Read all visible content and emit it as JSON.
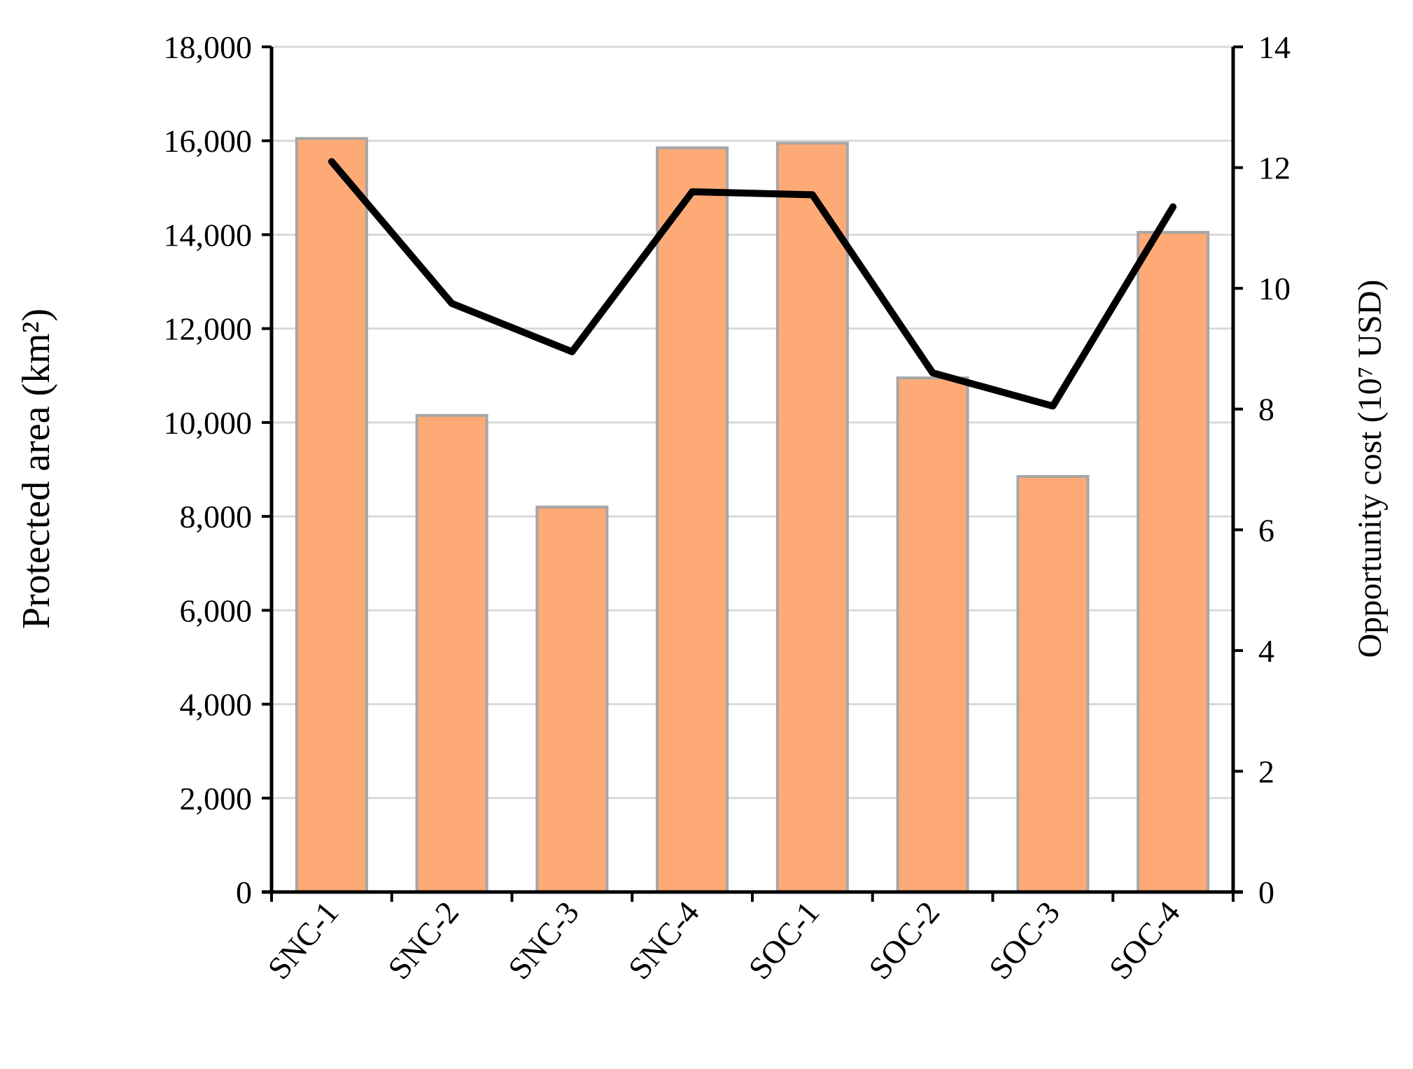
{
  "chart_data": {
    "type": "bar",
    "categories": [
      "SNC-1",
      "SNC-2",
      "SNC-3",
      "SNC-4",
      "SOC-1",
      "SOC-2",
      "SOC-3",
      "SOC-4"
    ],
    "series": [
      {
        "type": "bar",
        "axis": "left",
        "values": [
          16050,
          10150,
          8200,
          15850,
          15950,
          10950,
          8850,
          14050
        ]
      },
      {
        "type": "line",
        "axis": "right",
        "values": [
          12.1,
          9.75,
          8.95,
          11.6,
          11.55,
          8.6,
          8.05,
          11.35
        ]
      }
    ],
    "ylabel": "Protected area (km²)",
    "y2label": "Opportunity cost (10⁷ USD)",
    "ylim": [
      0,
      18000
    ],
    "y2lim": [
      0,
      14
    ],
    "yticks": [
      "0",
      "2,000",
      "4,000",
      "6,000",
      "8,000",
      "10,000",
      "12,000",
      "14,000",
      "16,000",
      "18,000"
    ],
    "y2ticks": [
      "0",
      "2",
      "4",
      "6",
      "8",
      "10",
      "12",
      "14"
    ],
    "grid": true,
    "colors": {
      "bar_fill": "#FDAA77",
      "bar_edge": "#A6A6A6",
      "line": "#000000",
      "grid": "#D9D9D9"
    }
  }
}
